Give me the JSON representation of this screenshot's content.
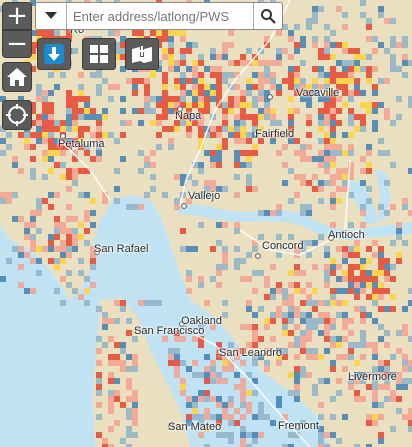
{
  "search": {
    "placeholder": "Enter address/latlong/PWS"
  },
  "controls": {
    "zoom_in": "+",
    "zoom_out": "−"
  },
  "colors": {
    "water": "#bfe3f3",
    "land": "#eae0c0",
    "very_low": "#3f7fb3",
    "low": "#8eb2c8",
    "moderate": "#f5a08e",
    "high": "#e8432f",
    "very_high": "#ffd23a",
    "control_bg": "#5b5b5b",
    "download_accent": "#1a8bd1"
  },
  "icons": {
    "dropdown": "caret-down-icon",
    "search": "magnifier-icon",
    "download": "download-arrow-icon",
    "grid": "four-squares-icon",
    "add_layer": "add-layer-icon",
    "home": "house-icon",
    "locate": "crosshair-icon"
  },
  "places": {
    "rohnert": "Ro",
    "petaluma": "Petaluma",
    "napa": "Napa",
    "vacaville": "Vacaville",
    "fairfield": "Fairfield",
    "vallejo": "Vallejo",
    "san_rafael": "San Rafael",
    "concord": "Concord",
    "antioch": "Antioch",
    "oakland": "Oakland",
    "san_francisco": "San Francisco",
    "san_leandro": "San Leandro",
    "livermore": "Livermore",
    "fremont": "Fremont",
    "san_mateo": "San Mateo"
  }
}
